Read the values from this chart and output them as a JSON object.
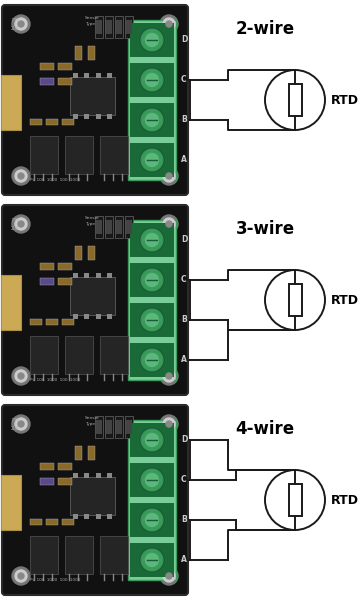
{
  "wire_types": [
    "2-wire",
    "3-wire",
    "4-wire"
  ],
  "board_color": "#111111",
  "board_edge": "#2a2a2a",
  "connector_color": "#7acc99",
  "connector_edge": "#3a9a5a",
  "connector_dark": "#2a6a3a",
  "hole_ring": "#999999",
  "hole_inner": "#dddddd",
  "usb_color": "#ccaa55",
  "line_color": "#1a1a1a",
  "rtd_text": "RTD",
  "conn_labels": [
    "D",
    "C",
    "B",
    "A"
  ],
  "label_fontsize": 6,
  "wire_label_fontsize": 12,
  "rtd_fontsize": 9
}
